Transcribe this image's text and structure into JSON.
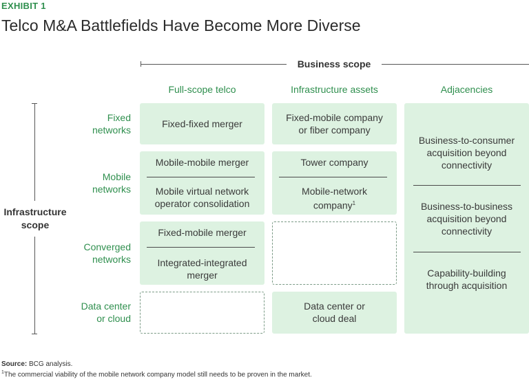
{
  "header": {
    "exhibit": "EXHIBIT 1",
    "title": "Telco M&A Battlefields Have Become More Diverse"
  },
  "axes": {
    "business_scope": "Business scope",
    "infrastructure_scope_line1": "Infrastructure",
    "infrastructure_scope_line2": "scope"
  },
  "columns": [
    "Full-scope telco",
    "Infrastructure assets",
    "Adjacencies"
  ],
  "rows": [
    {
      "line1": "Fixed",
      "line2": "networks"
    },
    {
      "line1": "Mobile",
      "line2": "networks"
    },
    {
      "line1": "Converged",
      "line2": "networks"
    },
    {
      "line1": "Data center",
      "line2": "or cloud"
    }
  ],
  "cells": {
    "fixed_full": "Fixed-fixed merger",
    "fixed_infra_1": "Fixed-mobile company",
    "fixed_infra_2": "or fiber company",
    "mobile_full_a": "Mobile-mobile merger",
    "mobile_full_b1": "Mobile virtual network",
    "mobile_full_b2": "operator consolidation",
    "mobile_infra_a": "Tower company",
    "mobile_infra_b1": "Mobile-network",
    "mobile_infra_b2": "company",
    "mobile_infra_b_sup": "1",
    "converged_full_a": "Fixed-mobile merger",
    "converged_full_b1": "Integrated-integrated",
    "converged_full_b2": "merger",
    "datacenter_infra_1": "Data center or",
    "datacenter_infra_2": "cloud deal",
    "adj_1a": "Business-to-consumer",
    "adj_1b": "acquisition beyond",
    "adj_1c": "connectivity",
    "adj_2a": "Business-to-business",
    "adj_2b": "acquisition beyond",
    "adj_2c": "connectivity",
    "adj_3a": "Capability-building",
    "adj_3b": "through acquisition"
  },
  "footer": {
    "source_label": "Source:",
    "source_text": " BCG analysis.",
    "note_sup": "1",
    "note_text": "The commercial viability of the mobile network company model still needs to be proven in the market."
  }
}
